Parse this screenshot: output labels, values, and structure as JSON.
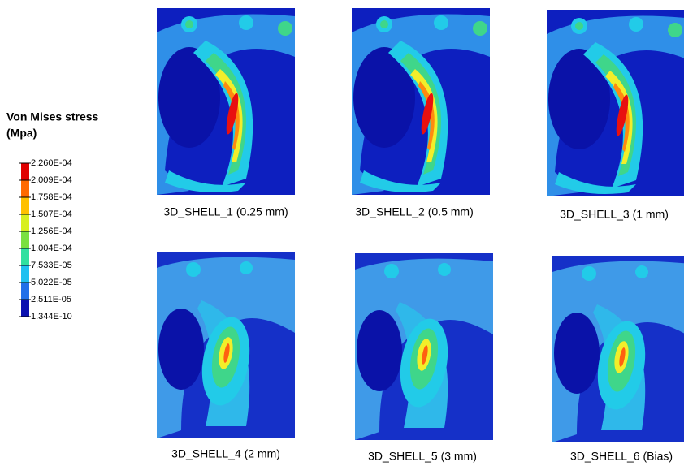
{
  "legend": {
    "title": [
      "Von Mises stress",
      "(Mpa)"
    ],
    "labels": [
      "2.260E-04",
      "2.009E-04",
      "1.758E-04",
      "1.507E-04",
      "1.256E-04",
      "1.004E-04",
      "7.533E-05",
      "5.022E-05",
      "2.511E-05",
      "1.344E-10"
    ]
  },
  "panels": [
    {
      "caption": "3D_SHELL_1 (0.25 mm)"
    },
    {
      "caption": "3D_SHELL_2 (0.5 mm)"
    },
    {
      "caption": "3D_SHELL_3 (1 mm)"
    },
    {
      "caption": "3D_SHELL_4 (2 mm)"
    },
    {
      "caption": "3D_SHELL_5 (3 mm)"
    },
    {
      "caption": "3D_SHELL_6 (Bias)"
    }
  ]
}
